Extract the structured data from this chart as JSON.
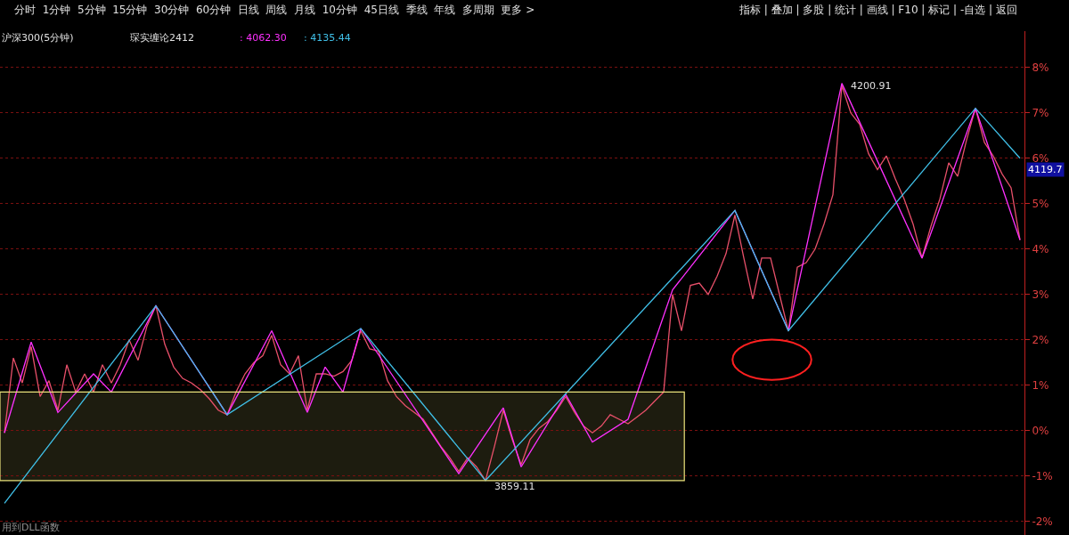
{
  "chart_data": {
    "type": "line",
    "title": "沪深300(5分钟)",
    "annotations": [
      "分时  1分钟  5分钟  15分钟  30分钟  60分钟  日线  周线  月线  10分钟  45日线  季线  年线  多周期  更多 >",
      "指标 | 叠加 | 多股 | 统计 | 画线 | F10 | 标记 | -自选 | 返回",
      "琛实缠论2412",
      ": 4062.30",
      ": 4135.44",
      "用到DLL函数",
      "4200.91",
      "3859.11",
      {
        "text": "4119.7",
        "y": 5.75
      }
    ],
    "categories": [
      null,
      null,
      null,
      null,
      null,
      null,
      null,
      null,
      null,
      null,
      null,
      null,
      null,
      null,
      null,
      null,
      null,
      null,
      null,
      null,
      null,
      null,
      null,
      null,
      null,
      null,
      null,
      null,
      null,
      null,
      null,
      null,
      null,
      null,
      null,
      null,
      null,
      null,
      null,
      null,
      null,
      null,
      null,
      null,
      null,
      null,
      null,
      null,
      null,
      null,
      null,
      null,
      null,
      null,
      null,
      null,
      null,
      null,
      null,
      null,
      null,
      null,
      null,
      null,
      null,
      null,
      null,
      null,
      null,
      null,
      null,
      null,
      null,
      null,
      null,
      null,
      null,
      null,
      null,
      null,
      null,
      null,
      null,
      null,
      null,
      null,
      null,
      null,
      null,
      null,
      null,
      null,
      null,
      null,
      null,
      null,
      null,
      null,
      null,
      null,
      null,
      null,
      null,
      null,
      null,
      null,
      null,
      null,
      null,
      null,
      null,
      null,
      null,
      null,
      null
    ],
    "series": [
      {
        "color": "#e8506a",
        "values": [
          -0.05,
          1.6,
          1.05,
          1.85,
          0.75,
          1.1,
          0.45,
          1.45,
          0.85,
          1.25,
          0.85,
          1.45,
          1.05,
          1.45,
          2.0,
          1.55,
          2.3,
          2.75,
          1.9,
          1.4,
          1.15,
          1.05,
          0.9,
          0.7,
          0.45,
          0.35,
          0.85,
          1.25,
          1.5,
          1.65,
          2.1,
          1.45,
          1.25,
          1.65,
          0.45,
          1.25,
          1.25,
          1.2,
          1.3,
          1.55,
          2.2,
          1.8,
          1.75,
          1.1,
          0.75,
          0.55,
          0.4,
          0.25,
          -0.05,
          -0.35,
          -0.6,
          -0.9,
          -0.6,
          -0.8,
          -1.1,
          -0.35,
          0.45,
          -0.2,
          -0.75,
          -0.2,
          0.05,
          0.2,
          0.45,
          0.75,
          0.4,
          0.1,
          -0.05,
          0.1,
          0.35,
          0.25,
          0.15,
          0.3,
          0.45,
          0.65,
          0.85,
          3.0,
          2.2,
          3.2,
          3.25,
          3.0,
          3.4,
          3.9,
          4.75,
          3.8,
          2.9,
          3.8,
          3.8,
          3.0,
          2.2,
          3.6,
          3.7,
          4.0,
          4.55,
          5.2,
          7.6,
          7.0,
          6.75,
          6.1,
          5.75,
          6.05,
          5.55,
          5.1,
          4.55,
          3.8,
          4.5,
          5.1,
          5.9,
          5.6,
          6.4,
          7.1,
          6.35,
          6.05,
          5.65,
          5.35,
          4.2
        ]
      },
      {
        "color": "#ff30ff",
        "values": [
          -0.05,
          null,
          null,
          1.95,
          null,
          null,
          0.4,
          null,
          null,
          null,
          1.25,
          null,
          0.85,
          null,
          null,
          null,
          null,
          2.75,
          null,
          null,
          null,
          null,
          null,
          null,
          null,
          0.35,
          null,
          null,
          null,
          null,
          2.2,
          null,
          null,
          null,
          0.4,
          null,
          1.4,
          null,
          0.85,
          null,
          2.25,
          null,
          null,
          null,
          null,
          null,
          null,
          null,
          null,
          null,
          null,
          -0.95,
          null,
          null,
          null,
          null,
          0.5,
          null,
          -0.8,
          null,
          null,
          null,
          null,
          0.8,
          null,
          null,
          -0.25,
          null,
          null,
          null,
          0.25,
          null,
          null,
          null,
          null,
          3.1,
          null,
          null,
          null,
          null,
          null,
          null,
          4.85,
          null,
          null,
          null,
          null,
          null,
          2.2,
          null,
          null,
          null,
          null,
          null,
          7.65,
          null,
          null,
          null,
          null,
          null,
          null,
          null,
          null,
          3.8,
          null,
          null,
          null,
          null,
          null,
          7.1,
          null,
          null,
          null,
          null,
          4.2
        ]
      },
      {
        "color": "#40c0e8",
        "values": [
          -1.6,
          null,
          null,
          null,
          null,
          null,
          null,
          null,
          null,
          null,
          null,
          null,
          null,
          null,
          null,
          null,
          null,
          2.75,
          null,
          null,
          null,
          null,
          null,
          null,
          null,
          0.35,
          null,
          null,
          null,
          null,
          null,
          null,
          null,
          null,
          null,
          null,
          null,
          null,
          null,
          null,
          2.25,
          null,
          null,
          null,
          null,
          null,
          null,
          null,
          null,
          null,
          null,
          null,
          null,
          null,
          -1.1,
          null,
          null,
          null,
          null,
          null,
          null,
          null,
          null,
          null,
          null,
          null,
          null,
          null,
          null,
          null,
          null,
          null,
          null,
          null,
          null,
          null,
          null,
          null,
          null,
          null,
          null,
          null,
          4.85,
          null,
          null,
          null,
          null,
          null,
          2.2,
          null,
          null,
          null,
          null,
          null,
          null,
          null,
          null,
          null,
          null,
          null,
          null,
          null,
          null,
          null,
          null,
          null,
          null,
          null,
          null,
          7.1,
          null,
          null,
          null,
          null,
          6.0
        ]
      }
    ],
    "ylim": [
      -2.3,
      8.8
    ],
    "yticks": [
      {
        "value": 8,
        "label": "8%"
      },
      {
        "value": 7,
        "label": "7%"
      },
      {
        "value": 6,
        "label": "6%"
      },
      {
        "value": 5,
        "label": "5%"
      },
      {
        "value": 4,
        "label": "4%"
      },
      {
        "value": 3,
        "label": "3%"
      },
      {
        "value": 2,
        "label": "2%"
      },
      {
        "value": 1,
        "label": "1%"
      },
      {
        "value": 0,
        "label": "0%"
      },
      {
        "value": -1,
        "label": "-1%"
      },
      {
        "value": -2,
        "label": "-2%"
      }
    ],
    "tick_labels": "y",
    "grid": "y",
    "bands": [
      {
        "axis": "y",
        "from": -1.1,
        "to": 0.85,
        "color": "#e8e07a"
      }
    ]
  }
}
